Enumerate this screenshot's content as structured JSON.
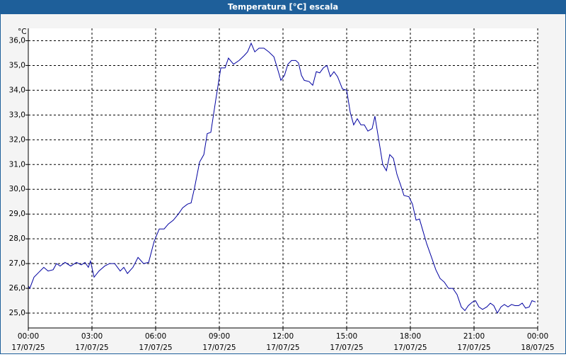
{
  "chart_data": {
    "type": "line",
    "title": "Temperatura [°C] escala",
    "y_unit": "°C",
    "xlim": [
      0,
      24
    ],
    "ylim": [
      24.4,
      36.5
    ],
    "xticks": [
      {
        "value": 0,
        "label": "00:00",
        "date": "17/07/25"
      },
      {
        "value": 3,
        "label": "03:00",
        "date": "17/07/25"
      },
      {
        "value": 6,
        "label": "06:00",
        "date": "17/07/25"
      },
      {
        "value": 9,
        "label": "09:00",
        "date": "17/07/25"
      },
      {
        "value": 12,
        "label": "12:00",
        "date": "17/07/25"
      },
      {
        "value": 15,
        "label": "15:00",
        "date": "17/07/25"
      },
      {
        "value": 18,
        "label": "18:00",
        "date": "17/07/25"
      },
      {
        "value": 21,
        "label": "21:00",
        "date": "17/07/25"
      },
      {
        "value": 24,
        "label": "00:00",
        "date": "18/07/25"
      }
    ],
    "yticks": [
      {
        "value": 25,
        "label": "25,0"
      },
      {
        "value": 26,
        "label": "26,0"
      },
      {
        "value": 27,
        "label": "27,0"
      },
      {
        "value": 28,
        "label": "28,0"
      },
      {
        "value": 29,
        "label": "29,0"
      },
      {
        "value": 30,
        "label": "30,0"
      },
      {
        "value": 31,
        "label": "31,0"
      },
      {
        "value": 32,
        "label": "32,0"
      },
      {
        "value": 33,
        "label": "33,0"
      },
      {
        "value": 34,
        "label": "34,0"
      },
      {
        "value": 35,
        "label": "35,0"
      },
      {
        "value": 36,
        "label": "36,0"
      }
    ],
    "grid": true,
    "x": [
      0,
      0.07,
      0.27,
      0.5,
      0.73,
      0.93,
      1.17,
      1.33,
      1.5,
      1.73,
      2.0,
      2.27,
      2.5,
      2.67,
      2.83,
      2.93,
      3.1,
      3.33,
      3.6,
      3.83,
      4.07,
      4.33,
      4.5,
      4.67,
      4.93,
      5.17,
      5.43,
      5.67,
      5.93,
      6.17,
      6.4,
      6.6,
      6.83,
      7.07,
      7.27,
      7.5,
      7.67,
      7.83,
      8.07,
      8.27,
      8.43,
      8.6,
      8.83,
      9.07,
      9.27,
      9.43,
      9.67,
      9.93,
      10.17,
      10.33,
      10.5,
      10.67,
      10.87,
      11.1,
      11.33,
      11.57,
      11.73,
      11.9,
      12.07,
      12.23,
      12.4,
      12.6,
      12.73,
      12.87,
      13.0,
      13.23,
      13.4,
      13.57,
      13.73,
      13.9,
      14.07,
      14.23,
      14.4,
      14.57,
      14.8,
      15.0,
      15.17,
      15.33,
      15.5,
      15.67,
      15.83,
      16.0,
      16.2,
      16.33,
      16.53,
      16.7,
      16.87,
      17.03,
      17.2,
      17.37,
      17.53,
      17.7,
      17.93,
      18.1,
      18.27,
      18.43,
      18.6,
      18.77,
      19.0,
      19.2,
      19.4,
      19.6,
      19.8,
      20.0,
      20.2,
      20.4,
      20.57,
      20.73,
      20.93,
      21.07,
      21.23,
      21.4,
      21.6,
      21.77,
      21.93,
      22.1,
      22.27,
      22.43,
      22.6,
      22.77,
      22.93,
      23.1,
      23.27,
      23.43,
      23.6,
      23.73,
      23.9
    ],
    "series": [
      {
        "name": "Temperatura",
        "color": "#0000a0",
        "values": [
          26.1,
          26.0,
          26.45,
          26.65,
          26.85,
          26.7,
          26.75,
          27.0,
          26.9,
          27.05,
          26.9,
          27.05,
          26.95,
          27.05,
          26.85,
          27.1,
          26.45,
          26.7,
          26.9,
          27.0,
          27.0,
          26.7,
          26.85,
          26.6,
          26.85,
          27.25,
          27.0,
          27.05,
          27.9,
          28.4,
          28.4,
          28.6,
          28.75,
          29.0,
          29.25,
          29.4,
          29.45,
          30.05,
          31.1,
          31.4,
          32.25,
          32.3,
          33.6,
          34.9,
          34.9,
          35.3,
          35.05,
          35.2,
          35.4,
          35.55,
          35.9,
          35.55,
          35.7,
          35.7,
          35.55,
          35.35,
          34.9,
          34.4,
          34.6,
          35.05,
          35.2,
          35.2,
          35.1,
          34.6,
          34.4,
          34.35,
          34.2,
          34.75,
          34.7,
          34.9,
          35.0,
          34.55,
          34.75,
          34.55,
          34.05,
          34.0,
          33.1,
          32.6,
          32.85,
          32.6,
          32.6,
          32.35,
          32.45,
          32.95,
          31.9,
          31.0,
          30.75,
          31.4,
          31.25,
          30.6,
          30.2,
          29.75,
          29.7,
          29.4,
          28.75,
          28.8,
          28.3,
          27.8,
          27.25,
          26.75,
          26.4,
          26.25,
          26.0,
          26.0,
          25.75,
          25.25,
          25.1,
          25.3,
          25.45,
          25.5,
          25.25,
          25.15,
          25.25,
          25.4,
          25.3,
          25.0,
          25.25,
          25.35,
          25.25,
          25.35,
          25.3,
          25.3,
          25.4,
          25.2,
          25.25,
          25.5,
          25.45
        ]
      }
    ]
  }
}
